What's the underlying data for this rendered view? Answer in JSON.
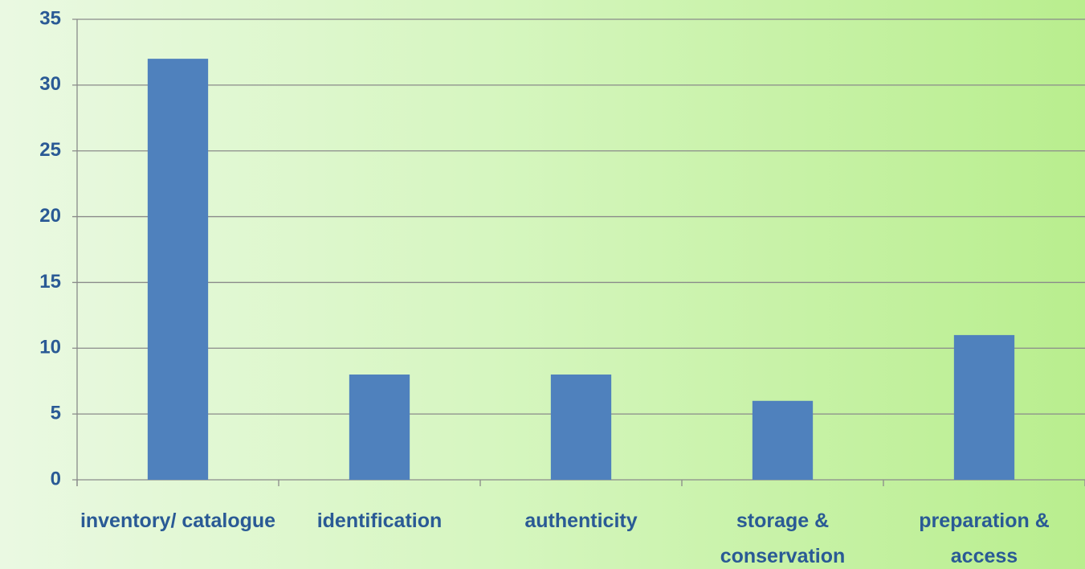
{
  "chart_data": {
    "type": "bar",
    "categories": [
      "inventory/ catalogue",
      "identification",
      "authenticity",
      "storage & conservation",
      "preparation & access"
    ],
    "values": [
      32,
      8,
      8,
      6,
      11
    ],
    "color": "#4f81bd",
    "ylim": [
      0,
      35
    ],
    "yticks": [
      0,
      5,
      10,
      15,
      20,
      25,
      30,
      35
    ],
    "grid": true
  }
}
